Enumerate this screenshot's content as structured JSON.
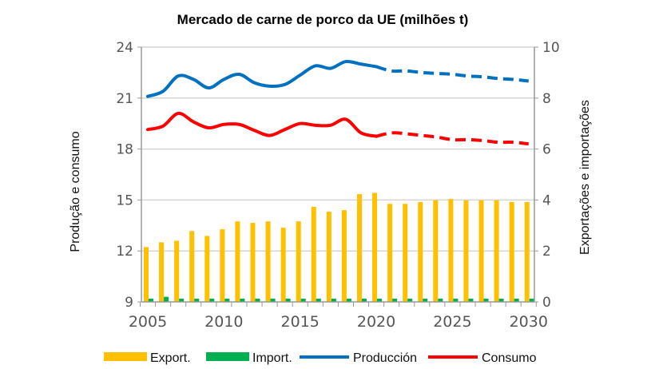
{
  "chart_data": {
    "type": "bar+line",
    "title": "Mercado de carne de porco da UE (milhões t)",
    "ylabel_left": "Produção e consumo",
    "ylabel_right": "Exportações e importações",
    "ylim_left": [
      9,
      24
    ],
    "yticks_left": [
      "9",
      "12",
      "15",
      "18",
      "21",
      "24"
    ],
    "ylim_right": [
      0,
      10
    ],
    "yticks_right": [
      "0",
      "2",
      "4",
      "6",
      "8",
      "10"
    ],
    "xticks": [
      "2005",
      "2010",
      "2015",
      "2020",
      "2025",
      "2030"
    ],
    "grid": true,
    "legend_position": "bottom",
    "projection_start": 2020,
    "x": [
      2005,
      2006,
      2007,
      2008,
      2009,
      2010,
      2011,
      2012,
      2013,
      2014,
      2015,
      2016,
      2017,
      2018,
      2019,
      2020,
      2021,
      2022,
      2023,
      2024,
      2025,
      2026,
      2027,
      2028,
      2029,
      2030
    ],
    "series": [
      {
        "name": "Export.",
        "type": "bar",
        "axis": "right",
        "color": "#FFC000",
        "values": [
          2.15,
          2.34,
          2.4,
          2.78,
          2.59,
          2.85,
          3.16,
          3.1,
          3.16,
          2.91,
          3.16,
          3.73,
          3.54,
          3.6,
          4.23,
          4.28,
          3.85,
          3.85,
          3.92,
          3.99,
          4.04,
          3.99,
          3.99,
          3.99,
          3.92,
          3.92
        ]
      },
      {
        "name": "Import.",
        "type": "bar",
        "axis": "right",
        "color": "#00B050",
        "values": [
          0.13,
          0.2,
          0.13,
          0.13,
          0.13,
          0.13,
          0.13,
          0.13,
          0.13,
          0.13,
          0.13,
          0.13,
          0.13,
          0.13,
          0.13,
          0.13,
          0.13,
          0.13,
          0.13,
          0.13,
          0.13,
          0.13,
          0.13,
          0.13,
          0.13,
          0.13
        ]
      },
      {
        "name": "Producción",
        "type": "line",
        "axis": "left",
        "color": "#0070C0",
        "values": [
          21.1,
          21.4,
          22.3,
          22.1,
          21.6,
          22.1,
          22.4,
          21.9,
          21.7,
          21.8,
          22.35,
          22.9,
          22.75,
          23.15,
          23.0,
          22.85,
          22.6,
          22.6,
          22.5,
          22.45,
          22.4,
          22.3,
          22.25,
          22.15,
          22.1,
          22.0
        ]
      },
      {
        "name": "Consumo",
        "type": "line",
        "axis": "left",
        "color": "#FF0000",
        "values": [
          19.15,
          19.35,
          20.1,
          19.6,
          19.25,
          19.45,
          19.45,
          19.1,
          18.8,
          19.15,
          19.5,
          19.4,
          19.4,
          19.75,
          18.95,
          18.75,
          18.95,
          18.9,
          18.8,
          18.7,
          18.55,
          18.55,
          18.5,
          18.4,
          18.4,
          18.3
        ]
      }
    ]
  }
}
